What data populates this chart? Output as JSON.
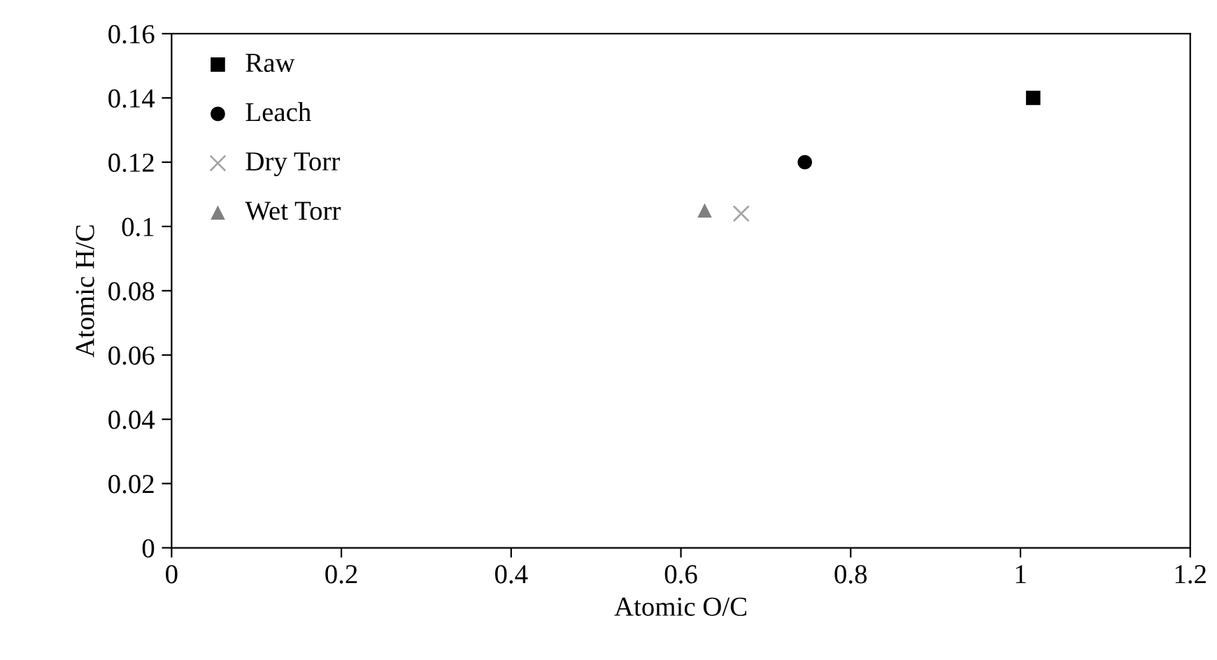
{
  "chart_data": {
    "type": "scatter",
    "xlabel": "Atomic O/C",
    "ylabel": "Atomic H/C",
    "xlim": [
      0,
      1.2
    ],
    "xticks": [
      0,
      0.2,
      0.4,
      0.6,
      0.8,
      1,
      1.2
    ],
    "ylim": [
      0,
      0.16
    ],
    "yticks": [
      0,
      0.02,
      0.04,
      0.06,
      0.08,
      0.1,
      0.12,
      0.14,
      0.16
    ],
    "grid": false,
    "legend": "top left",
    "series": [
      {
        "name": "Raw",
        "color": "#000000",
        "marker": "square",
        "x": [
          1.015
        ],
        "values": [
          0.14
        ]
      },
      {
        "name": "Leach",
        "color": "#000000",
        "marker": "circle",
        "x": [
          0.746
        ],
        "values": [
          0.12
        ]
      },
      {
        "name": "Dry Torr",
        "color": "#a6a6a6",
        "marker": "cross",
        "x": [
          0.671
        ],
        "values": [
          0.104
        ]
      },
      {
        "name": "Wet Torr",
        "color": "#808080",
        "marker": "triangle",
        "x": [
          0.628
        ],
        "values": [
          0.105
        ]
      }
    ]
  }
}
